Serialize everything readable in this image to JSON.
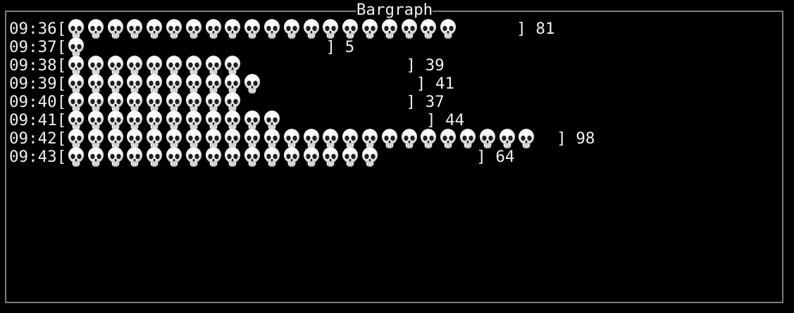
{
  "window": {
    "title": "Bargraph"
  },
  "bargraph": {
    "open_bracket": "[",
    "close_bracket": "]",
    "bar_icon": "skull-icon",
    "rows": [
      {
        "time": "09:36",
        "skulls": 20,
        "value": "81"
      },
      {
        "time": "09:37",
        "skulls": 1,
        "value": "5"
      },
      {
        "time": "09:38",
        "skulls": 9,
        "value": "39"
      },
      {
        "time": "09:39",
        "skulls": 10,
        "value": "41"
      },
      {
        "time": "09:40",
        "skulls": 9,
        "value": "37"
      },
      {
        "time": "09:41",
        "skulls": 11,
        "value": "44"
      },
      {
        "time": "09:42",
        "skulls": 24,
        "value": "98"
      },
      {
        "time": "09:43",
        "skulls": 16,
        "value": "64"
      }
    ]
  },
  "colors": {
    "background": "#000000",
    "border": "#7d7d7d",
    "text": "#f0f0f0",
    "skull_fill": "#f3f3f3",
    "skull_shade": "#c6c6c6",
    "skull_sockets": "#1f1f1f"
  },
  "chart_data": {
    "type": "bar",
    "orientation": "horizontal",
    "title": "Bargraph",
    "categories": [
      "09:36",
      "09:37",
      "09:38",
      "09:39",
      "09:40",
      "09:41",
      "09:42",
      "09:43"
    ],
    "values": [
      81,
      5,
      39,
      41,
      37,
      44,
      98,
      64
    ],
    "bar_glyph": "skull",
    "glyph_counts": [
      20,
      1,
      9,
      10,
      9,
      11,
      24,
      16
    ],
    "value_units_per_glyph": 4,
    "value_labels_position": "right-of-bracket",
    "grid": false,
    "legend": false
  }
}
